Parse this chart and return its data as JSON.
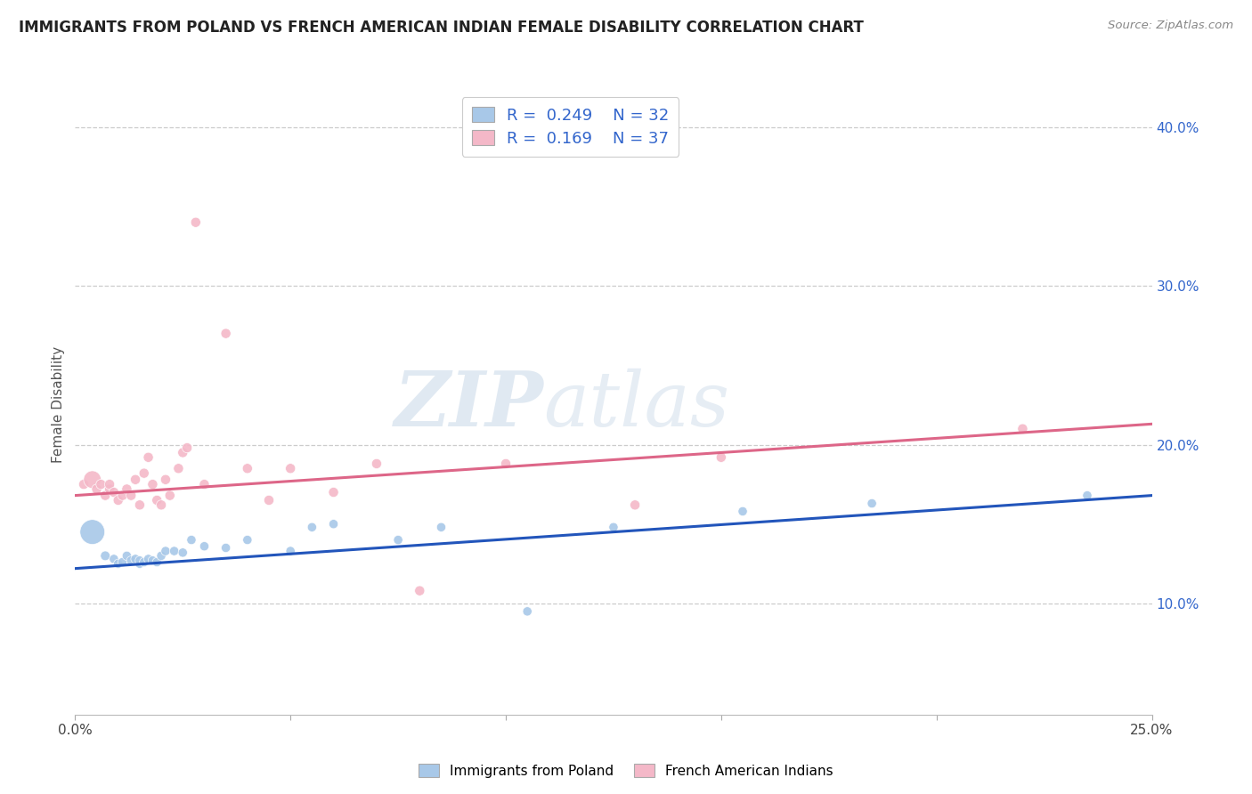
{
  "title": "IMMIGRANTS FROM POLAND VS FRENCH AMERICAN INDIAN FEMALE DISABILITY CORRELATION CHART",
  "source": "Source: ZipAtlas.com",
  "ylabel": "Female Disability",
  "xlim": [
    0.0,
    0.25
  ],
  "ylim": [
    0.03,
    0.42
  ],
  "y_ticks": [
    0.1,
    0.2,
    0.3,
    0.4
  ],
  "y_tick_labels": [
    "10.0%",
    "20.0%",
    "30.0%",
    "40.0%"
  ],
  "x_ticks": [
    0.0,
    0.05,
    0.1,
    0.15,
    0.2,
    0.25
  ],
  "x_tick_labels": [
    "0.0%",
    "",
    "",
    "",
    "",
    "25.0%"
  ],
  "blue_color": "#a8c8e8",
  "pink_color": "#f4b8c8",
  "blue_line_color": "#2255bb",
  "pink_line_color": "#dd6688",
  "blue_scatter_x": [
    0.004,
    0.007,
    0.009,
    0.01,
    0.011,
    0.012,
    0.013,
    0.014,
    0.015,
    0.015,
    0.016,
    0.017,
    0.018,
    0.019,
    0.02,
    0.021,
    0.023,
    0.025,
    0.027,
    0.03,
    0.035,
    0.04,
    0.05,
    0.055,
    0.06,
    0.075,
    0.085,
    0.105,
    0.125,
    0.155,
    0.185,
    0.235
  ],
  "blue_scatter_y": [
    0.145,
    0.13,
    0.128,
    0.125,
    0.126,
    0.13,
    0.127,
    0.128,
    0.125,
    0.127,
    0.126,
    0.128,
    0.127,
    0.126,
    0.13,
    0.133,
    0.133,
    0.132,
    0.14,
    0.136,
    0.135,
    0.14,
    0.133,
    0.148,
    0.15,
    0.14,
    0.148,
    0.095,
    0.148,
    0.158,
    0.163,
    0.168
  ],
  "blue_scatter_sizes": [
    400,
    60,
    55,
    55,
    55,
    55,
    55,
    55,
    55,
    55,
    55,
    55,
    55,
    55,
    55,
    55,
    55,
    55,
    55,
    55,
    55,
    55,
    55,
    55,
    55,
    55,
    55,
    55,
    55,
    55,
    55,
    55
  ],
  "pink_scatter_x": [
    0.002,
    0.004,
    0.005,
    0.006,
    0.007,
    0.008,
    0.008,
    0.009,
    0.01,
    0.011,
    0.012,
    0.013,
    0.014,
    0.015,
    0.016,
    0.017,
    0.018,
    0.019,
    0.02,
    0.021,
    0.022,
    0.024,
    0.025,
    0.026,
    0.028,
    0.03,
    0.035,
    0.04,
    0.045,
    0.05,
    0.06,
    0.07,
    0.08,
    0.1,
    0.13,
    0.15,
    0.22
  ],
  "pink_scatter_y": [
    0.175,
    0.178,
    0.172,
    0.175,
    0.168,
    0.172,
    0.175,
    0.17,
    0.165,
    0.168,
    0.172,
    0.168,
    0.178,
    0.162,
    0.182,
    0.192,
    0.175,
    0.165,
    0.162,
    0.178,
    0.168,
    0.185,
    0.195,
    0.198,
    0.34,
    0.175,
    0.27,
    0.185,
    0.165,
    0.185,
    0.17,
    0.188,
    0.108,
    0.188,
    0.162,
    0.192,
    0.21
  ],
  "pink_scatter_sizes": [
    65,
    200,
    65,
    65,
    65,
    65,
    65,
    65,
    65,
    65,
    65,
    65,
    65,
    65,
    65,
    65,
    65,
    65,
    65,
    65,
    65,
    65,
    65,
    65,
    65,
    65,
    65,
    65,
    65,
    65,
    65,
    65,
    65,
    65,
    65,
    65,
    65
  ],
  "blue_trendline_x": [
    0.0,
    0.25
  ],
  "blue_trendline_y": [
    0.122,
    0.168
  ],
  "pink_trendline_x": [
    0.0,
    0.25
  ],
  "pink_trendline_y": [
    0.168,
    0.213
  ],
  "grid_color": "#cccccc",
  "background_color": "#ffffff",
  "watermark1": "ZIP",
  "watermark2": "atlas"
}
